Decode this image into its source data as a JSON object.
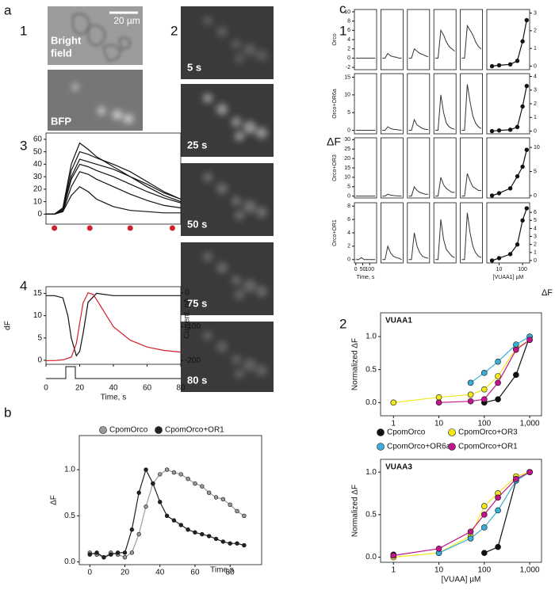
{
  "labels": [
    "a",
    "1",
    "2",
    "3",
    "4",
    "b",
    "c",
    "1",
    "2"
  ],
  "images": {
    "bright_field": [
      "Bright",
      "field"
    ],
    "scale": "20 µm",
    "bfp": "BFP",
    "frames": [
      "5 s",
      "25 s",
      "50 s",
      "75 s",
      "80 s"
    ]
  },
  "c1_labels": {
    "left": "ΔF",
    "right": "ΔF"
  },
  "chart_data": [
    {
      "type": "line",
      "x": [
        0,
        5,
        10,
        15,
        20,
        25,
        30,
        40,
        50,
        60,
        70,
        80
      ],
      "xlim": [
        0,
        80
      ],
      "ylim": [
        -8,
        65
      ],
      "yticks": [
        0,
        10,
        20,
        30,
        40,
        50,
        60
      ],
      "series": [
        {
          "color": "#111111",
          "values": [
            0,
            0,
            5,
            40,
            57,
            52,
            46,
            38,
            30,
            22,
            15,
            10
          ]
        },
        {
          "color": "#111111",
          "values": [
            0,
            0,
            4,
            35,
            50,
            48,
            45,
            40,
            34,
            26,
            18,
            12
          ]
        },
        {
          "color": "#111111",
          "values": [
            0,
            0,
            3,
            30,
            44,
            42,
            40,
            36,
            30,
            24,
            17,
            12
          ]
        },
        {
          "color": "#111111",
          "values": [
            0,
            0,
            3,
            28,
            40,
            38,
            35,
            30,
            24,
            18,
            13,
            9
          ]
        },
        {
          "color": "#111111",
          "values": [
            0,
            0,
            2,
            22,
            34,
            32,
            28,
            22,
            16,
            11,
            7,
            5
          ]
        },
        {
          "color": "#111111",
          "values": [
            0,
            0,
            2,
            15,
            22,
            18,
            12,
            6,
            3,
            2,
            1,
            1
          ]
        }
      ],
      "markers_x": [
        5,
        26,
        50,
        75
      ],
      "marker_color": "#d0202a"
    },
    {
      "type": "line",
      "xlim": [
        0,
        80
      ],
      "xticks": [
        0,
        20,
        40,
        60,
        80
      ],
      "xlabel": "Time, s",
      "ylabel": "dF",
      "y2label": "Current, pA",
      "ylim": [
        -0.9,
        16.5
      ],
      "yticks": [
        0,
        5,
        10,
        15
      ],
      "y2lim": [
        -211,
        18
      ],
      "y2ticks": [
        0,
        -100,
        -200
      ],
      "x": [
        0,
        5,
        10,
        13,
        15,
        18,
        20,
        22,
        25,
        30,
        40,
        50,
        60,
        70,
        80
      ],
      "series": [
        {
          "color": "#111111",
          "values": [
            14.5,
            14.5,
            14,
            10,
            5,
            1,
            2,
            6,
            13,
            15,
            14.5,
            14.5,
            14.5,
            14.5,
            14.5
          ]
        },
        {
          "color": "#d0202a",
          "axis": "y2",
          "x": [
            0,
            5,
            10,
            15,
            18,
            20,
            22,
            25,
            28,
            30,
            35,
            40,
            50,
            60,
            70,
            80
          ],
          "values": [
            -200,
            -200,
            -198,
            -190,
            -150,
            -90,
            -30,
            0,
            -5,
            -20,
            -60,
            -100,
            -140,
            -160,
            -170,
            -175
          ]
        }
      ]
    },
    {
      "type": "line",
      "markers": true,
      "xlim": [
        -6,
        98
      ],
      "xticks": [
        0,
        20,
        40,
        60,
        80
      ],
      "xlabel": "Time,s",
      "ylabel": "ΔF",
      "ylim": [
        -0.03,
        1.37
      ],
      "yticks": [
        {
          "value": 0,
          "label": "0.0"
        },
        {
          "value": 0.5,
          "label": "0.5"
        },
        {
          "value": 1,
          "label": "1.0"
        }
      ],
      "x": [
        0,
        4,
        8,
        12,
        16,
        20,
        24,
        28,
        32,
        36,
        40,
        44,
        48,
        52,
        56,
        60,
        64,
        68,
        72,
        76,
        80,
        84,
        88
      ],
      "series": [
        {
          "name": "CpomOrco",
          "color": "#9a9a9a",
          "values": [
            0.1,
            0.08,
            0.05,
            0.1,
            0.08,
            0.05,
            0.1,
            0.3,
            0.6,
            0.85,
            0.95,
            1.0,
            0.97,
            0.95,
            0.9,
            0.85,
            0.82,
            0.75,
            0.7,
            0.68,
            0.62,
            0.55,
            0.5
          ]
        },
        {
          "name": "CpomOrco+OR1",
          "color": "#222222",
          "values": [
            0.08,
            0.1,
            0.05,
            0.08,
            0.1,
            0.1,
            0.35,
            0.75,
            1.0,
            0.85,
            0.65,
            0.5,
            0.45,
            0.4,
            0.35,
            0.32,
            0.3,
            0.28,
            0.25,
            0.22,
            0.2,
            0.2,
            0.18
          ]
        }
      ]
    },
    {
      "type": "multiples",
      "ylabel": "Orco",
      "x": [
        0,
        20,
        40,
        60,
        80,
        100,
        120,
        140
      ],
      "xlim": [
        -10,
        150
      ],
      "ylim": [
        -2.5,
        10.5
      ],
      "yticks": [
        -2,
        0,
        2,
        4,
        6,
        8,
        10
      ],
      "series": [
        {
          "color": "#333333",
          "values": [
            0,
            0,
            0,
            0,
            0,
            0,
            0,
            0
          ]
        },
        {
          "color": "#333333",
          "values": [
            0,
            0,
            1,
            0.5,
            0.3,
            0.2,
            0,
            0
          ]
        },
        {
          "color": "#333333",
          "values": [
            0,
            0,
            2,
            1.5,
            1,
            0.8,
            0.5,
            0.3
          ]
        },
        {
          "color": "#333333",
          "values": [
            0,
            0,
            6,
            5,
            3.5,
            2.5,
            2,
            1.5
          ]
        },
        {
          "color": "#333333",
          "values": [
            0,
            0,
            7,
            6,
            5,
            3.5,
            2.5,
            2
          ]
        }
      ]
    },
    {
      "type": "multiples",
      "ylabel": "Orco+OR6a",
      "x": [
        0,
        20,
        40,
        60,
        80,
        100,
        120,
        140
      ],
      "xlim": [
        -10,
        150
      ],
      "ylim": [
        -1,
        16
      ],
      "yticks": [
        0,
        5,
        10,
        15
      ],
      "series": [
        {
          "color": "#333333",
          "values": [
            0,
            0,
            0,
            0,
            0,
            0,
            0,
            0
          ]
        },
        {
          "color": "#333333",
          "values": [
            0,
            0,
            1,
            0.5,
            0.3,
            0.2,
            0.1,
            0
          ]
        },
        {
          "color": "#333333",
          "values": [
            0,
            0,
            3,
            1.5,
            1,
            0.5,
            0.3,
            0.2
          ]
        },
        {
          "color": "#333333",
          "values": [
            0,
            0,
            10,
            5,
            2,
            1,
            0.5,
            0.3
          ]
        },
        {
          "color": "#333333",
          "values": [
            0,
            0,
            13,
            8,
            4,
            2,
            1,
            0.5
          ]
        }
      ]
    },
    {
      "type": "multiples",
      "ylabel": "Orco+OR3",
      "x": [
        0,
        20,
        40,
        60,
        80,
        100,
        120,
        140
      ],
      "xlim": [
        -10,
        150
      ],
      "ylim": [
        -1,
        31
      ],
      "yticks": [
        0,
        5,
        10,
        15,
        20,
        25,
        30
      ],
      "series": [
        {
          "color": "#333333",
          "values": [
            0,
            0,
            0,
            0,
            0,
            0,
            0,
            0
          ]
        },
        {
          "color": "#333333",
          "values": [
            0,
            0,
            1,
            0.5,
            0.3,
            0.2,
            0.1,
            0
          ]
        },
        {
          "color": "#333333",
          "values": [
            0,
            0,
            5,
            3,
            2,
            1.5,
            1,
            1
          ]
        },
        {
          "color": "#333333",
          "values": [
            0,
            0,
            10,
            6,
            4,
            3,
            2,
            2
          ]
        },
        {
          "color": "#333333",
          "values": [
            0,
            0,
            12,
            8,
            5,
            4,
            3,
            3
          ]
        }
      ]
    },
    {
      "type": "multiples",
      "ylabel": "Orco+OR1",
      "x": [
        0,
        20,
        40,
        60,
        80,
        100,
        120,
        140
      ],
      "xlim": [
        -10,
        150
      ],
      "ylim": [
        -0.5,
        8.5
      ],
      "yticks": [
        0,
        2,
        4,
        6,
        8
      ],
      "xticks": [
        0,
        50,
        100
      ],
      "xlabel": "Time, s",
      "series": [
        {
          "color": "#333333",
          "values": [
            0,
            0,
            0.3,
            0,
            0,
            0,
            0,
            0
          ]
        },
        {
          "color": "#333333",
          "values": [
            0,
            0,
            2,
            1,
            0.5,
            0.3,
            0.2,
            0
          ]
        },
        {
          "color": "#333333",
          "values": [
            0,
            0,
            4,
            2,
            1,
            0.5,
            0.3,
            0.2
          ]
        },
        {
          "color": "#333333",
          "values": [
            0,
            0,
            6,
            3,
            1.5,
            1,
            0.5,
            0.3
          ]
        },
        {
          "color": "#333333",
          "values": [
            0,
            0,
            7,
            4,
            2,
            1,
            0.5,
            0.3
          ]
        }
      ]
    },
    {
      "type": "line",
      "markers": true,
      "xlog": true,
      "x": [
        5,
        10,
        30,
        60,
        100,
        150
      ],
      "xlim": [
        3,
        200
      ],
      "ylim": [
        -0.2,
        3.2
      ],
      "yticks": [
        0,
        1,
        2,
        3
      ],
      "values": [
        0,
        0.05,
        0.1,
        0.3,
        1.4,
        2.6
      ],
      "color": "#111111"
    },
    {
      "type": "line",
      "markers": true,
      "xlog": true,
      "x": [
        5,
        10,
        30,
        60,
        100,
        150
      ],
      "xlim": [
        3,
        200
      ],
      "ylim": [
        -0.2,
        4.2
      ],
      "yticks": [
        0,
        1,
        2,
        3,
        4
      ],
      "values": [
        0,
        0.05,
        0.1,
        0.3,
        1.8,
        3.3
      ],
      "color": "#111111"
    },
    {
      "type": "line",
      "markers": true,
      "xlog": true,
      "x": [
        5,
        10,
        30,
        60,
        100,
        150
      ],
      "xlim": [
        3,
        200
      ],
      "ylim": [
        -0.5,
        12
      ],
      "yticks": [
        0,
        5,
        10
      ],
      "values": [
        0,
        0.5,
        1.5,
        4,
        6,
        9.5
      ],
      "color": "#111111"
    },
    {
      "type": "line",
      "markers": true,
      "xlog": true,
      "x": [
        5,
        10,
        30,
        60,
        100,
        150
      ],
      "xlim": [
        3,
        200
      ],
      "ylim": [
        -0.3,
        7.2
      ],
      "yticks": [
        0,
        1,
        2,
        3,
        4,
        5,
        6
      ],
      "xticks": [
        10,
        100
      ],
      "xlabel": "[VUAA1] µM",
      "values": [
        0,
        0.3,
        0.8,
        2,
        5,
        6.5
      ],
      "color": "#111111"
    },
    {
      "type": "line",
      "markers": true,
      "xlog": true,
      "title": "VUAA1",
      "ylabel": "Normalized ΔF",
      "x": [
        1,
        10,
        50,
        100,
        200,
        500,
        1000
      ],
      "xlim": [
        0.52,
        1820
      ],
      "xticks": [
        1,
        10,
        100,
        {
          "value": 1000,
          "label": "1,000"
        }
      ],
      "ylim": [
        -0.2,
        1.36
      ],
      "yticks": [
        {
          "value": 0,
          "label": "0.0"
        },
        {
          "value": 0.5,
          "label": "0.5"
        },
        {
          "value": 1,
          "label": "1.0"
        }
      ],
      "series": [
        {
          "name": "CpomOrco",
          "color": "#111111",
          "values": [
            null,
            null,
            null,
            0.0,
            0.05,
            0.42,
            1.0
          ]
        },
        {
          "name": "CpomOrco+OR3",
          "color": "#f2e81a",
          "values": [
            0.0,
            0.08,
            0.12,
            0.2,
            0.4,
            0.82,
            0.95
          ]
        },
        {
          "name": "CpomOrco+OR6a",
          "color": "#3aaed8",
          "values": [
            null,
            null,
            0.3,
            0.45,
            0.62,
            0.88,
            1.0
          ]
        },
        {
          "name": "CpomOrco+OR1",
          "color": "#c0158c",
          "values": [
            null,
            0.0,
            0.02,
            0.05,
            0.3,
            0.8,
            0.95
          ]
        }
      ]
    },
    {
      "type": "line",
      "markers": true,
      "xlog": true,
      "title": "VUAA3",
      "ylabel": "Normalized ΔF",
      "xlabel": "[VUAA] µM",
      "x": [
        1,
        10,
        50,
        100,
        200,
        500,
        1000
      ],
      "xlim": [
        0.52,
        1820
      ],
      "xticks": [
        1,
        10,
        100,
        {
          "value": 1000,
          "label": "1,000"
        }
      ],
      "ylim": [
        -0.06,
        1.15
      ],
      "yticks": [
        {
          "value": 0,
          "label": "0.0"
        },
        {
          "value": 0.5,
          "label": "0.5"
        },
        {
          "value": 1,
          "label": "1.0"
        }
      ],
      "series": [
        {
          "color": "#111111",
          "values": [
            0.03,
            null,
            null,
            0.05,
            0.12,
            0.9,
            1.0
          ]
        },
        {
          "color": "#f2e81a",
          "values": [
            0.0,
            0.05,
            0.25,
            0.6,
            0.75,
            0.95,
            1.0
          ]
        },
        {
          "color": "#3aaed8",
          "values": [
            null,
            0.05,
            0.22,
            0.35,
            0.55,
            0.9,
            1.0
          ]
        },
        {
          "color": "#c0158c",
          "values": [
            0.02,
            0.1,
            0.3,
            0.5,
            0.7,
            0.92,
            1.0
          ]
        }
      ]
    }
  ]
}
